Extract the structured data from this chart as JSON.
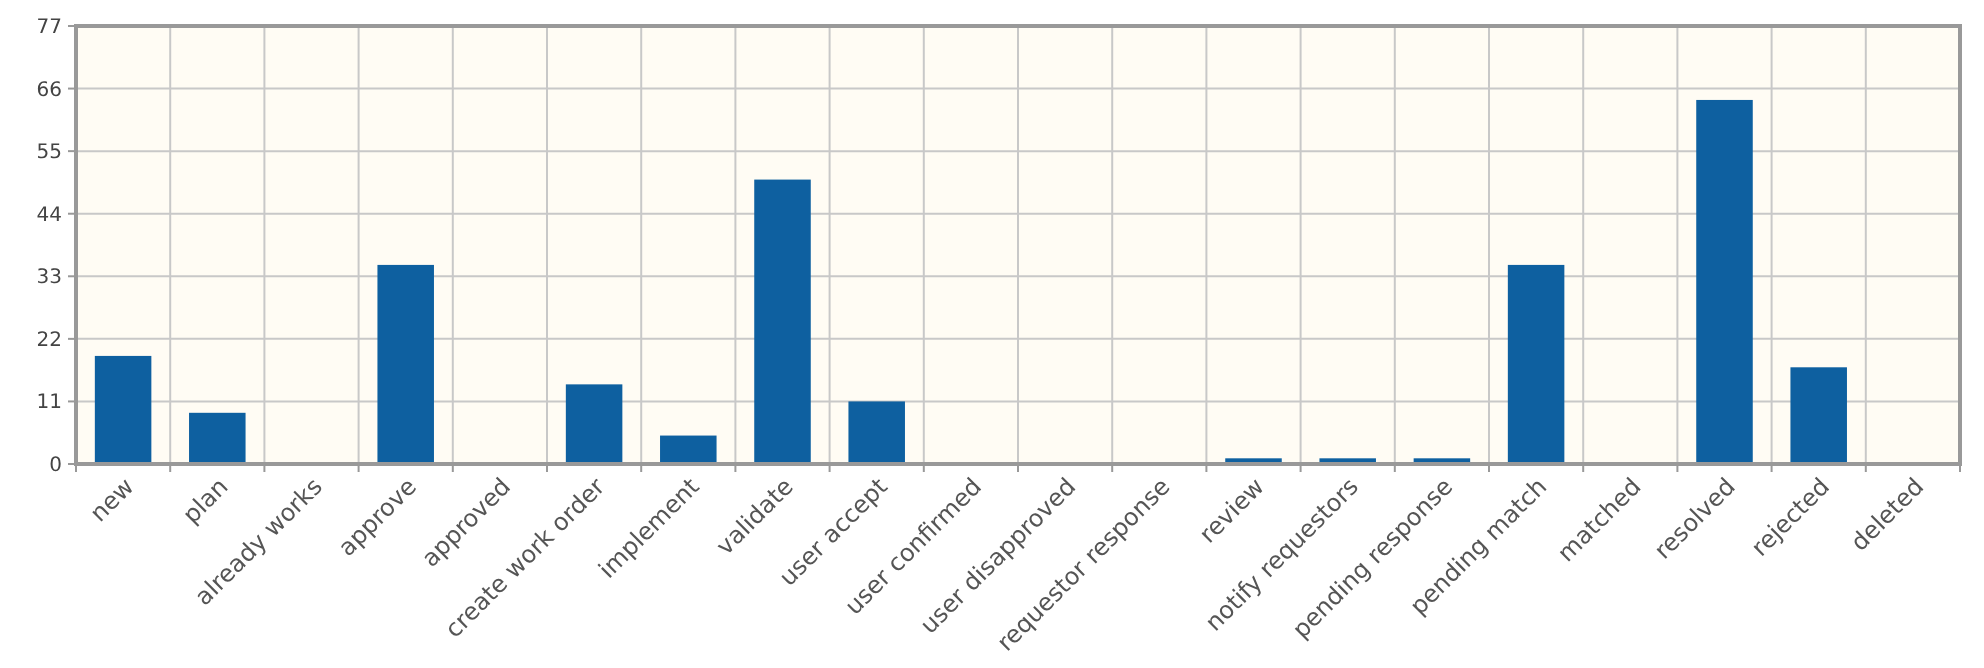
{
  "chart_data": {
    "type": "bar",
    "categories": [
      "new",
      "plan",
      "already works",
      "approve",
      "approved",
      "create work order",
      "implement",
      "validate",
      "user accept",
      "user confirmed",
      "user disapproved",
      "requestor response",
      "review",
      "notify requestors",
      "pending response",
      "pending match",
      "matched",
      "resolved",
      "rejected",
      "deleted"
    ],
    "values": [
      19,
      9,
      0,
      35,
      0,
      14,
      5,
      50,
      11,
      0,
      0,
      0,
      1,
      1,
      1,
      35,
      0,
      64,
      17,
      0
    ],
    "color": "#0e60a0",
    "ylim": [
      0,
      77
    ],
    "yticks": [
      0,
      11,
      22,
      33,
      44,
      55,
      66,
      77
    ],
    "grid": true
  }
}
